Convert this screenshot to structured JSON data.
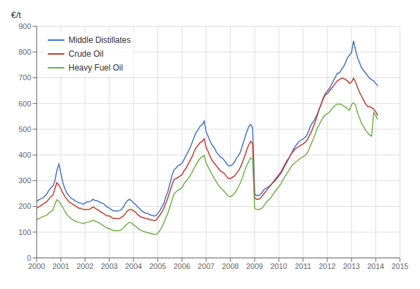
{
  "chart_data": {
    "type": "line",
    "ylabel": "€/t",
    "x": [
      2000,
      2000.083333,
      2000.166667,
      2000.25,
      2000.333333,
      2000.416667,
      2000.5,
      2000.583333,
      2000.666667,
      2000.75,
      2000.833333,
      2000.916667,
      2001,
      2001.083333,
      2001.166667,
      2001.25,
      2001.333333,
      2001.416667,
      2001.5,
      2001.583333,
      2001.666667,
      2001.75,
      2001.833333,
      2001.916667,
      2002,
      2002.083333,
      2002.166667,
      2002.25,
      2002.333333,
      2002.416667,
      2002.5,
      2002.583333,
      2002.666667,
      2002.75,
      2002.833333,
      2002.916667,
      2003,
      2003.083333,
      2003.166667,
      2003.25,
      2003.333333,
      2003.416667,
      2003.5,
      2003.583333,
      2003.666667,
      2003.75,
      2003.833333,
      2003.916667,
      2004,
      2004.083333,
      2004.166667,
      2004.25,
      2004.333333,
      2004.416667,
      2004.5,
      2004.583333,
      2004.666667,
      2004.75,
      2004.833333,
      2004.916667,
      2005,
      2005.083333,
      2005.166667,
      2005.25,
      2005.333333,
      2005.416667,
      2005.5,
      2005.583333,
      2005.666667,
      2005.75,
      2005.833333,
      2005.916667,
      2006,
      2006.083333,
      2006.166667,
      2006.25,
      2006.333333,
      2006.416667,
      2006.5,
      2006.583333,
      2006.666667,
      2006.75,
      2006.833333,
      2006.916667,
      2007,
      2007.083333,
      2007.166667,
      2007.25,
      2007.333333,
      2007.416667,
      2007.5,
      2007.583333,
      2007.666667,
      2007.75,
      2007.833333,
      2007.916667,
      2008,
      2008.083333,
      2008.166667,
      2008.25,
      2008.333333,
      2008.416667,
      2008.5,
      2008.583333,
      2008.666667,
      2008.75,
      2008.833333,
      2008.916667,
      2009,
      2009.083333,
      2009.166667,
      2009.25,
      2009.333333,
      2009.416667,
      2009.5,
      2009.583333,
      2009.666667,
      2009.75,
      2009.833333,
      2009.916667,
      2010,
      2010.083333,
      2010.166667,
      2010.25,
      2010.333333,
      2010.416667,
      2010.5,
      2010.583333,
      2010.666667,
      2010.75,
      2010.833333,
      2010.916667,
      2011,
      2011.083333,
      2011.166667,
      2011.25,
      2011.333333,
      2011.416667,
      2011.5,
      2011.583333,
      2011.666667,
      2011.75,
      2011.833333,
      2011.916667,
      2012,
      2012.083333,
      2012.166667,
      2012.25,
      2012.333333,
      2012.416667,
      2012.5,
      2012.583333,
      2012.666667,
      2012.75,
      2012.833333,
      2012.916667,
      2013,
      2013.083333,
      2013.166667,
      2013.25,
      2013.333333,
      2013.416667,
      2013.5,
      2013.583333,
      2013.666667,
      2013.75,
      2013.833333,
      2013.916667,
      2014,
      2014.083333
    ],
    "series": [
      {
        "name": "Middle Distillates",
        "color": "#4472C4",
        "values": [
          220,
          225,
          230,
          232,
          240,
          248,
          262,
          272,
          278,
          298,
          340,
          365,
          328,
          292,
          268,
          252,
          242,
          232,
          228,
          222,
          218,
          214,
          213,
          208,
          213,
          218,
          218,
          222,
          228,
          222,
          222,
          218,
          213,
          212,
          204,
          198,
          193,
          188,
          183,
          183,
          182,
          183,
          188,
          198,
          213,
          222,
          228,
          222,
          213,
          208,
          198,
          192,
          183,
          178,
          173,
          173,
          168,
          166,
          163,
          163,
          173,
          183,
          198,
          212,
          238,
          258,
          288,
          318,
          342,
          348,
          358,
          362,
          368,
          382,
          398,
          412,
          428,
          448,
          468,
          488,
          498,
          512,
          518,
          532,
          488,
          472,
          452,
          438,
          428,
          412,
          402,
          392,
          388,
          378,
          368,
          358,
          358,
          362,
          372,
          388,
          398,
          412,
          438,
          462,
          488,
          508,
          518,
          505,
          248,
          242,
          242,
          248,
          258,
          268,
          272,
          278,
          282,
          292,
          298,
          308,
          318,
          328,
          342,
          358,
          372,
          388,
          402,
          418,
          432,
          442,
          452,
          458,
          462,
          468,
          478,
          498,
          518,
          528,
          542,
          558,
          578,
          598,
          622,
          638,
          648,
          658,
          672,
          688,
          702,
          718,
          718,
          732,
          742,
          758,
          778,
          788,
          798,
          843,
          808,
          778,
          758,
          738,
          728,
          718,
          708,
          698,
          692,
          688,
          678,
          668
        ]
      },
      {
        "name": "Crude Oil",
        "color": "#C0392B",
        "values": [
          193,
          198,
          203,
          208,
          213,
          218,
          228,
          238,
          243,
          268,
          292,
          283,
          268,
          252,
          238,
          228,
          218,
          213,
          208,
          203,
          198,
          193,
          193,
          188,
          188,
          188,
          188,
          193,
          198,
          193,
          188,
          183,
          178,
          173,
          168,
          163,
          163,
          158,
          153,
          153,
          153,
          153,
          158,
          163,
          173,
          183,
          188,
          188,
          183,
          178,
          168,
          163,
          158,
          156,
          153,
          153,
          148,
          148,
          146,
          146,
          156,
          166,
          178,
          193,
          213,
          233,
          258,
          283,
          303,
          308,
          313,
          318,
          323,
          338,
          348,
          363,
          378,
          393,
          413,
          428,
          438,
          448,
          453,
          463,
          428,
          413,
          393,
          378,
          368,
          358,
          348,
          338,
          333,
          328,
          318,
          308,
          308,
          313,
          318,
          328,
          338,
          353,
          373,
          393,
          418,
          438,
          453,
          443,
          233,
          228,
          228,
          233,
          243,
          253,
          263,
          273,
          283,
          293,
          303,
          313,
          323,
          333,
          348,
          363,
          378,
          388,
          403,
          413,
          423,
          428,
          433,
          438,
          443,
          448,
          458,
          473,
          488,
          508,
          528,
          553,
          578,
          598,
          618,
          633,
          638,
          648,
          658,
          668,
          678,
          688,
          693,
          698,
          698,
          693,
          688,
          678,
          683,
          698,
          683,
          663,
          643,
          628,
          613,
          598,
          588,
          588,
          583,
          578,
          568,
          553
        ]
      },
      {
        "name": "Heavy Fuel Oil",
        "color": "#70AD47",
        "values": [
          148,
          153,
          156,
          160,
          163,
          166,
          173,
          180,
          186,
          208,
          226,
          220,
          208,
          196,
          180,
          168,
          160,
          153,
          148,
          143,
          140,
          138,
          136,
          133,
          136,
          138,
          140,
          143,
          146,
          143,
          140,
          136,
          130,
          126,
          120,
          116,
          113,
          110,
          106,
          106,
          106,
          106,
          110,
          116,
          126,
          133,
          138,
          136,
          128,
          123,
          116,
          110,
          106,
          103,
          100,
          98,
          96,
          94,
          92,
          91,
          96,
          106,
          120,
          136,
          156,
          173,
          198,
          223,
          248,
          256,
          263,
          268,
          273,
          288,
          298,
          308,
          318,
          333,
          348,
          363,
          376,
          386,
          393,
          398,
          368,
          353,
          338,
          323,
          308,
          296,
          283,
          273,
          266,
          258,
          248,
          240,
          238,
          243,
          250,
          263,
          276,
          293,
          313,
          338,
          358,
          373,
          388,
          383,
          193,
          188,
          188,
          190,
          196,
          208,
          218,
          226,
          233,
          246,
          256,
          268,
          276,
          288,
          303,
          316,
          328,
          340,
          353,
          363,
          370,
          376,
          383,
          388,
          393,
          398,
          406,
          423,
          443,
          460,
          480,
          503,
          518,
          533,
          546,
          556,
          560,
          566,
          576,
          586,
          593,
          598,
          598,
          596,
          590,
          586,
          580,
          573,
          596,
          603,
          593,
          563,
          543,
          523,
          510,
          496,
          486,
          478,
          473,
          566,
          553,
          538
        ]
      }
    ],
    "xlim": [
      2000,
      2015
    ],
    "xticks": [
      2000,
      2001,
      2002,
      2003,
      2004,
      2005,
      2006,
      2007,
      2008,
      2009,
      2010,
      2011,
      2012,
      2013,
      2014,
      2015
    ],
    "ylim": [
      0,
      900
    ],
    "yticks": [
      0,
      100,
      200,
      300,
      400,
      500,
      600,
      700,
      800,
      900
    ],
    "grid": true,
    "legend": "upper left"
  }
}
